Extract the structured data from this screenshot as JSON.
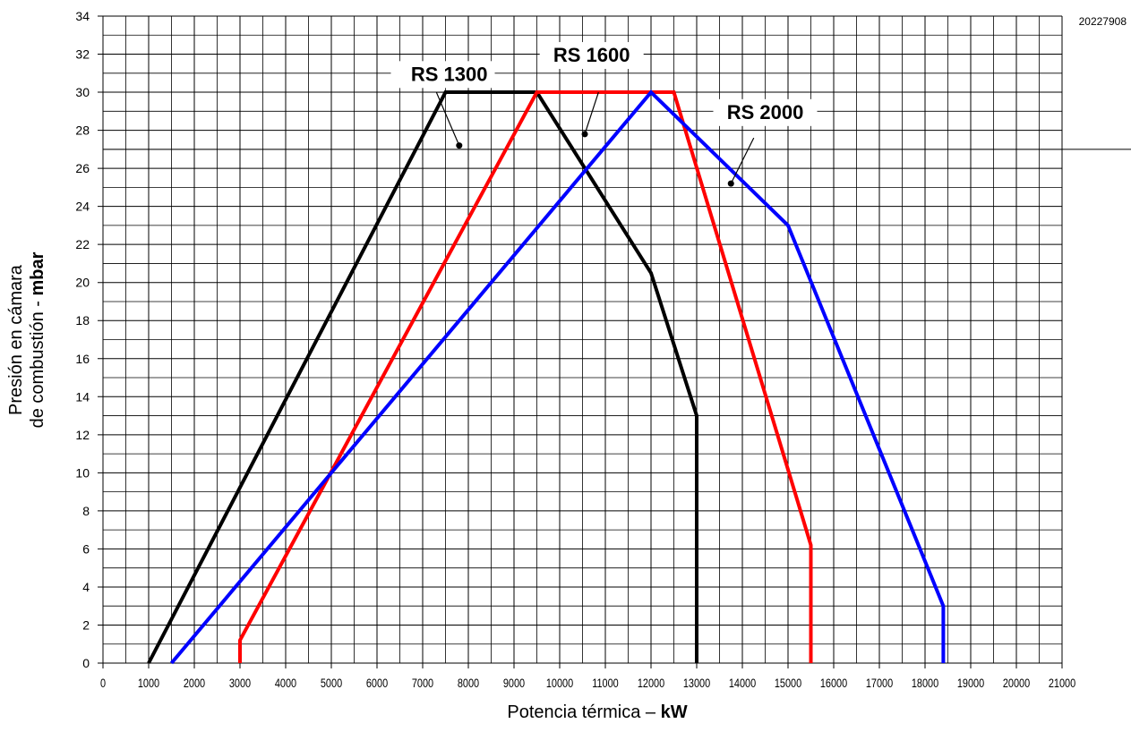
{
  "figure_code": "20227908",
  "colors": {
    "RS 1300": "#000000",
    "RS 1600": "#ff0000",
    "RS 2000": "#0000ff"
  },
  "chart_data": {
    "type": "line",
    "xlabel": {
      "text": "Potencia térmica – ",
      "unit": "kW"
    },
    "ylabel": {
      "line1": "Presión en cámara",
      "line2": "de combustión - ",
      "unit": "mbar"
    },
    "xlim": [
      0,
      21000
    ],
    "ylim": [
      0,
      34
    ],
    "x_ticks": [
      0,
      1000,
      2000,
      3000,
      4000,
      5000,
      6000,
      7000,
      8000,
      9000,
      10000,
      11000,
      12000,
      13000,
      14000,
      15000,
      16000,
      17000,
      18000,
      19000,
      20000,
      21000
    ],
    "y_ticks": [
      0,
      2,
      4,
      6,
      8,
      10,
      12,
      14,
      16,
      18,
      20,
      22,
      24,
      26,
      28,
      30,
      32,
      34
    ],
    "grid": true,
    "series": [
      {
        "name": "RS 1300",
        "points": [
          [
            1000,
            0
          ],
          [
            7500,
            30
          ],
          [
            9500,
            30
          ],
          [
            12000,
            20.5
          ],
          [
            13000,
            13
          ],
          [
            13000,
            0
          ]
        ]
      },
      {
        "name": "RS 1600",
        "points": [
          [
            3000,
            0
          ],
          [
            3000,
            1.2
          ],
          [
            9500,
            30
          ],
          [
            12500,
            30
          ],
          [
            15500,
            6.2
          ],
          [
            15500,
            0
          ]
        ]
      },
      {
        "name": "RS 2000",
        "points": [
          [
            1500,
            0
          ],
          [
            12000,
            30
          ],
          [
            15000,
            23
          ],
          [
            18400,
            3
          ],
          [
            18400,
            0
          ]
        ]
      }
    ]
  }
}
